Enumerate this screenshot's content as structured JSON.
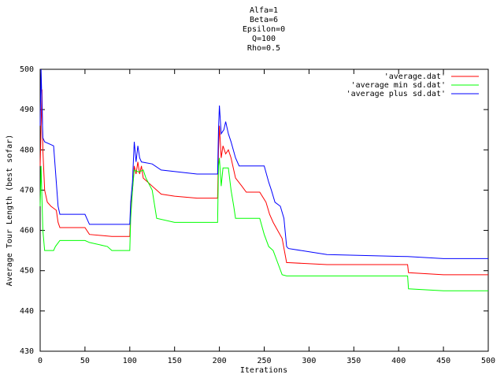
{
  "chart_data": {
    "type": "line",
    "title_lines": [
      "Alfa=1",
      "Beta=6",
      "Epsilon=0",
      "Q=100",
      "Rho=0.5"
    ],
    "xlabel": "Iterations",
    "ylabel": "Average Tour Length (best sofar)",
    "xlim": [
      0,
      500
    ],
    "ylim": [
      430,
      500
    ],
    "xticks": [
      0,
      50,
      100,
      150,
      200,
      250,
      300,
      350,
      400,
      450,
      500
    ],
    "yticks": [
      430,
      440,
      450,
      460,
      470,
      480,
      490,
      500
    ],
    "grid": false,
    "legend": "top-right",
    "series": [
      {
        "name": "'average.dat'",
        "color": "#ff0000",
        "x": [
          0,
          2,
          3,
          5,
          8,
          12,
          18,
          20,
          22,
          50,
          55,
          80,
          100,
          101,
          103,
          105,
          107,
          109,
          111,
          113,
          115,
          125,
          135,
          150,
          175,
          198,
          199,
          200,
          202,
          204,
          207,
          210,
          213,
          218,
          225,
          230,
          245,
          252,
          256,
          260,
          265,
          270,
          275,
          277,
          320,
          410,
          411,
          450,
          500
        ],
        "values": [
          476,
          495,
          480,
          470,
          467,
          466,
          465,
          462,
          460.7,
          460.7,
          459,
          458.5,
          458.5,
          465,
          470,
          476,
          474,
          477,
          474,
          476,
          473,
          471,
          469,
          468.5,
          468,
          468,
          480,
          486,
          478,
          481,
          479,
          480,
          478,
          473,
          471,
          469.5,
          469.5,
          467,
          464,
          462,
          460,
          458,
          452,
          452,
          451.5,
          451.5,
          449.5,
          449,
          449
        ]
      },
      {
        "name": "'average min sd.dat'",
        "color": "#00ff00",
        "x": [
          0,
          1,
          3,
          5,
          15,
          17,
          22,
          50,
          55,
          75,
          80,
          100,
          101,
          103,
          105,
          110,
          115,
          118,
          125,
          130,
          150,
          175,
          198,
          199,
          200,
          202,
          204,
          210,
          213,
          216,
          218,
          245,
          250,
          255,
          260,
          265,
          270,
          275,
          320,
          410,
          411,
          450,
          500
        ],
        "values": [
          466,
          476,
          460,
          455,
          455,
          456,
          457.5,
          457.5,
          457,
          456,
          455,
          455,
          463,
          470,
          475,
          474.5,
          475,
          473,
          470,
          463,
          462,
          462,
          462,
          476,
          478,
          471,
          475.5,
          475.5,
          470,
          466,
          463,
          463,
          459,
          456,
          455,
          452,
          449,
          448.7,
          448.7,
          448.7,
          445.5,
          445,
          445
        ]
      },
      {
        "name": "'average plus sd.dat'",
        "color": "#0000ff",
        "x": [
          0,
          1,
          3,
          5,
          15,
          20,
          22,
          50,
          55,
          100,
          101,
          103,
          105,
          107,
          109,
          111,
          113,
          125,
          135,
          175,
          198,
          199,
          200,
          202,
          205,
          207,
          210,
          213,
          218,
          222,
          250,
          255,
          258,
          262,
          268,
          272,
          275,
          277,
          320,
          410,
          450,
          500
        ],
        "values": [
          486,
          500,
          483,
          482,
          481,
          466,
          464,
          464,
          461.5,
          461.5,
          467,
          472,
          482,
          477,
          481,
          478,
          477,
          476.5,
          475,
          474,
          474,
          485,
          491,
          484,
          485,
          487,
          484,
          482,
          478,
          476,
          476,
          472,
          470,
          467,
          466,
          463,
          456,
          455.5,
          454,
          453.5,
          453,
          453
        ]
      }
    ]
  }
}
